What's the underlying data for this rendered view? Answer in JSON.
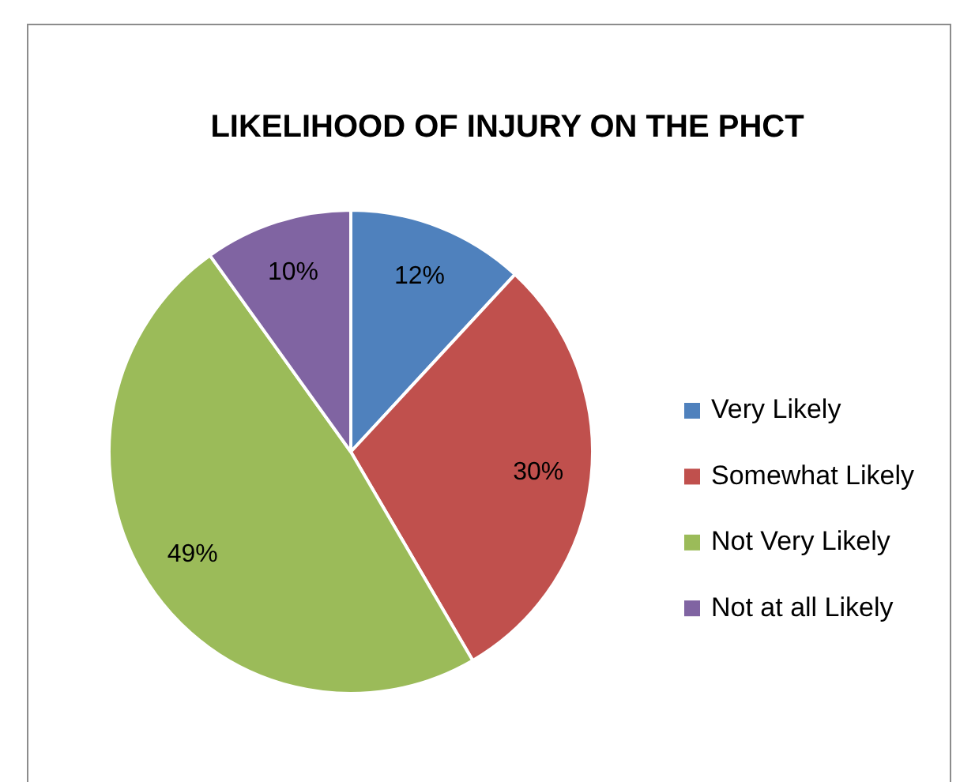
{
  "chart_data": {
    "type": "pie",
    "title": "LIKELIHOOD OF INJURY ON THE PHCT",
    "categories": [
      "Very Likely",
      "Somewhat Likely",
      "Not Very Likely",
      "Not at all Likely"
    ],
    "values": [
      12,
      30,
      49,
      10
    ],
    "colors": [
      "#4f81bd",
      "#c0504d",
      "#9bbb59",
      "#8064a2"
    ],
    "value_labels": [
      "12%",
      "30%",
      "49%",
      "10%"
    ],
    "legend": "right"
  }
}
